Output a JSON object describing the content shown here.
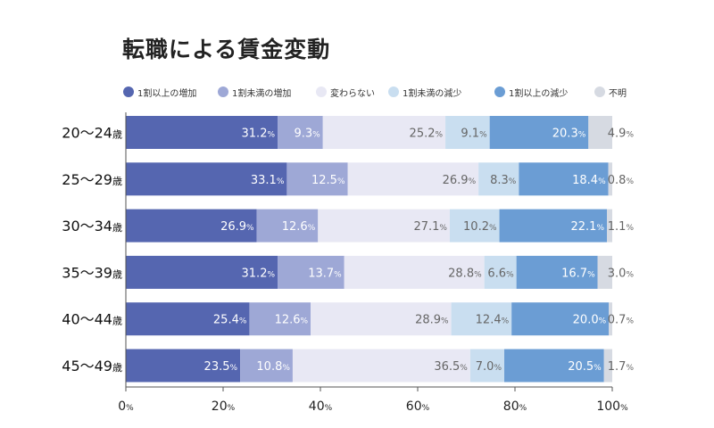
{
  "chart_data": {
    "type": "bar",
    "orientation": "horizontal",
    "stacked": true,
    "title": "転職による賃金変動",
    "categories": [
      "20～24歳",
      "25～29歳",
      "30～34歳",
      "35～39歳",
      "40～44歳",
      "45～49歳"
    ],
    "category_labels": [
      {
        "range": "20～24",
        "unit": "歳"
      },
      {
        "range": "25～29",
        "unit": "歳"
      },
      {
        "range": "30～34",
        "unit": "歳"
      },
      {
        "range": "35～39",
        "unit": "歳"
      },
      {
        "range": "40～44",
        "unit": "歳"
      },
      {
        "range": "45～49",
        "unit": "歳"
      }
    ],
    "series": [
      {
        "name": "1割以上の増加",
        "color": "#5566b0",
        "label_color": "#ffffff",
        "values": [
          31.2,
          33.1,
          26.9,
          31.2,
          25.4,
          23.5
        ]
      },
      {
        "name": "1割未満の増加",
        "color": "#9ea8d6",
        "label_color": "#ffffff",
        "values": [
          9.3,
          12.5,
          12.6,
          13.7,
          12.6,
          10.8
        ]
      },
      {
        "name": "変わらない",
        "color": "#e8e8f4",
        "label_color": "#666666",
        "values": [
          25.2,
          26.9,
          27.1,
          28.8,
          28.9,
          36.5
        ]
      },
      {
        "name": "1割未満の減少",
        "color": "#c9def0",
        "label_color": "#666666",
        "values": [
          9.1,
          8.3,
          10.2,
          6.6,
          12.4,
          7.0
        ]
      },
      {
        "name": "1割以上の減少",
        "color": "#6b9dd4",
        "label_color": "#ffffff",
        "values": [
          20.3,
          18.4,
          22.1,
          16.7,
          20.0,
          20.5
        ]
      },
      {
        "name": "不明",
        "color": "#d6dae2",
        "label_color": "#666666",
        "values": [
          4.9,
          0.8,
          1.1,
          3.0,
          0.7,
          1.7
        ]
      }
    ],
    "value_unit": "%",
    "xlim": [
      0,
      100
    ],
    "x_ticks": [
      0,
      20,
      40,
      60,
      80,
      100
    ],
    "legend_position": "top",
    "grid": false
  }
}
